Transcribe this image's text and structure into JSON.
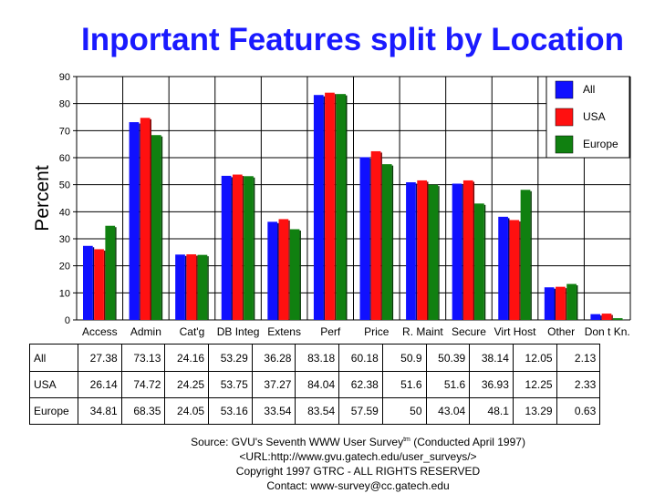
{
  "chart_data": {
    "type": "bar",
    "title": "Inportant Features split by Location",
    "ylabel": "Percent",
    "xlabel": "",
    "ylim": [
      0,
      90
    ],
    "yticks": [
      0,
      10,
      20,
      30,
      40,
      50,
      60,
      70,
      80,
      90
    ],
    "grid": true,
    "legend_position": "top-right",
    "categories": [
      "Access",
      "Admin",
      "Cat'g",
      "DB Integ",
      "Extens",
      "Perf",
      "Price",
      "R. Maint",
      "Secure",
      "Virt Host",
      "Other",
      "Don t Kn."
    ],
    "series": [
      {
        "name": "All",
        "color": "#1010ff",
        "values": [
          27.38,
          73.13,
          24.16,
          53.29,
          36.28,
          83.18,
          60.18,
          50.9,
          50.39,
          38.14,
          12.05,
          2.13
        ],
        "labels": [
          "27.38",
          "73.13",
          "24.16",
          "53.29",
          "36.28",
          "83.18",
          "60.18",
          "50.9",
          "50.39",
          "38.14",
          "12.05",
          "2.13"
        ]
      },
      {
        "name": "USA",
        "color": "#ff1010",
        "values": [
          26.14,
          74.72,
          24.25,
          53.75,
          37.27,
          84.04,
          62.38,
          51.6,
          51.6,
          36.93,
          12.25,
          2.33
        ],
        "labels": [
          "26.14",
          "74.72",
          "24.25",
          "53.75",
          "37.27",
          "84.04",
          "62.38",
          "51.6",
          "51.6",
          "36.93",
          "12.25",
          "2.33"
        ]
      },
      {
        "name": "Europe",
        "color": "#108010",
        "values": [
          34.81,
          68.35,
          24.05,
          53.16,
          33.54,
          83.54,
          57.59,
          50,
          43.04,
          48.1,
          13.29,
          0.63
        ],
        "labels": [
          "34.81",
          "68.35",
          "24.05",
          "53.16",
          "33.54",
          "83.54",
          "57.59",
          "50",
          "43.04",
          "48.1",
          "13.29",
          "0.63"
        ]
      }
    ]
  },
  "footer": {
    "source_prefix": "Source: GVU's Seventh WWW User Survey",
    "source_tm": "tm",
    "source_suffix": " (Conducted April 1997)",
    "url_line": "<URL:http://www.gvu.gatech.edu/user_surveys/>",
    "copyright": "Copyright 1997 GTRC - ALL RIGHTS RESERVED",
    "contact": "Contact: www-survey@cc.gatech.edu"
  }
}
